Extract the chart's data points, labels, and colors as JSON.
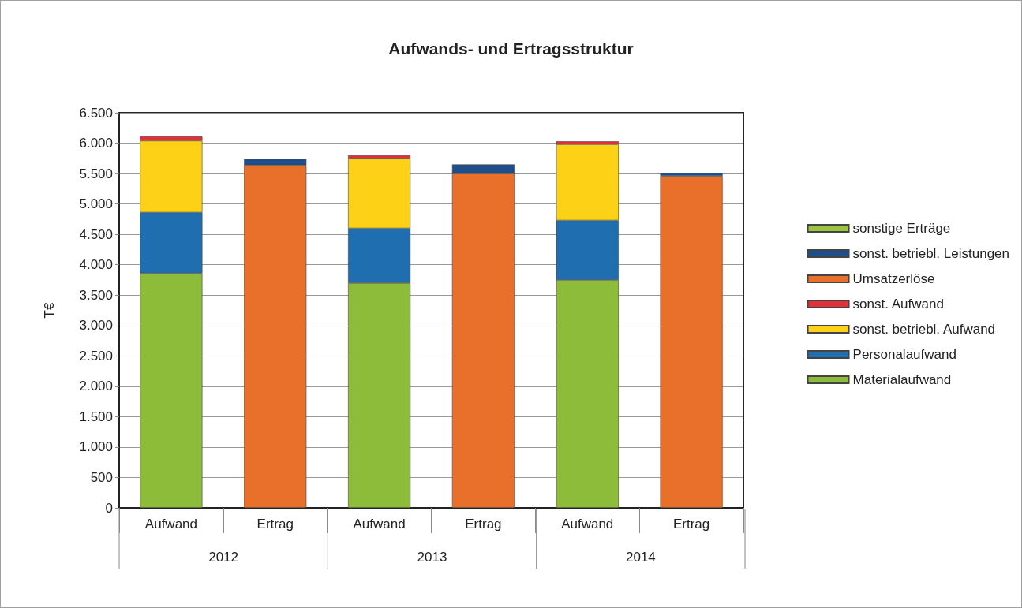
{
  "chart_data": {
    "type": "bar",
    "title": "Aufwands- und Ertragsstruktur",
    "ylabel": "T€",
    "categories": [
      "Aufwand",
      "Ertrag",
      "Aufwand",
      "Ertrag",
      "Aufwand",
      "Ertrag"
    ],
    "annotations": [
      "2012",
      "2013",
      "2014"
    ],
    "stacked": true,
    "grid": "y",
    "legend": "right",
    "ylim": [
      0,
      6500
    ],
    "yticks": [
      0,
      500,
      {
        "value": 1000,
        "label": "1.000"
      },
      {
        "value": 1500,
        "label": "1.500"
      },
      {
        "value": 2000,
        "label": "2.000"
      },
      {
        "value": 2500,
        "label": "2.500"
      },
      {
        "value": 3000,
        "label": "3.000"
      },
      {
        "value": 3500,
        "label": "3.500"
      },
      {
        "value": 4000,
        "label": "4.000"
      },
      {
        "value": 4500,
        "label": "4.500"
      },
      {
        "value": 5000,
        "label": "5.000"
      },
      {
        "value": 5500,
        "label": "5.500"
      },
      {
        "value": 6000,
        "label": "6.000"
      },
      {
        "value": 6500,
        "label": "6.500"
      }
    ],
    "series": [
      {
        "name": "Materialaufwand",
        "color": "#8dbb3a",
        "values": [
          3860,
          null,
          3700,
          null,
          3750,
          null
        ]
      },
      {
        "name": "Personalaufwand",
        "color": "#1f6fb0",
        "values": [
          1000,
          null,
          900,
          null,
          980,
          null
        ]
      },
      {
        "name": "sonst. betriebl. Aufwand",
        "color": "#fcd116",
        "values": [
          1180,
          null,
          1150,
          null,
          1250,
          null
        ]
      },
      {
        "name": "sonst. Aufwand",
        "color": "#e0303a",
        "values": [
          70,
          null,
          50,
          null,
          50,
          null
        ]
      },
      {
        "name": "Umsatzerlöse",
        "color": "#e8702a",
        "values": [
          null,
          5640,
          null,
          5500,
          null,
          5460
        ]
      },
      {
        "name": "sonst. betriebl. Leistungen",
        "color": "#1f4e8c",
        "values": [
          null,
          100,
          null,
          150,
          null,
          50
        ]
      },
      {
        "name": "sonstige Erträge",
        "color": "#9bc53d",
        "values": [
          null,
          null,
          null,
          null,
          null,
          null
        ]
      }
    ]
  }
}
